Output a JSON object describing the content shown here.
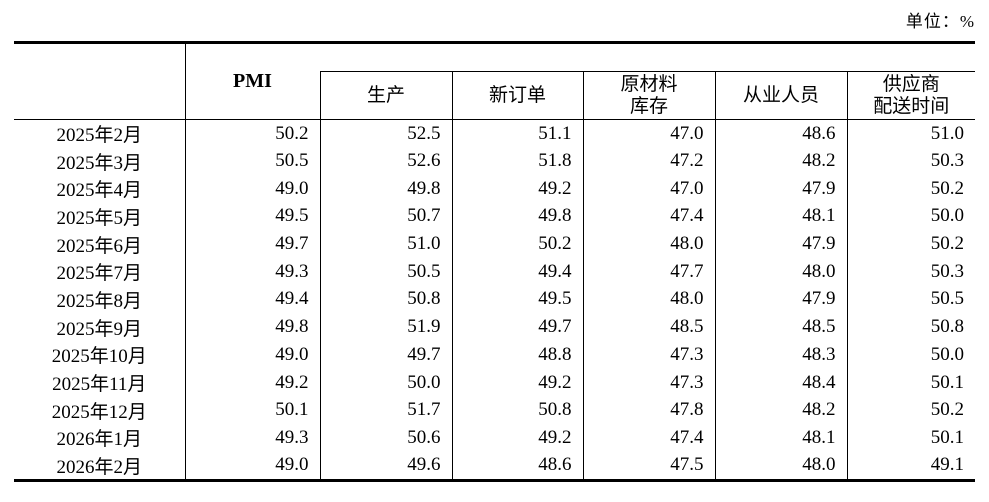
{
  "page": {
    "unit_label": "单位：%"
  },
  "table": {
    "columns": {
      "month": "",
      "pmi": "PMI",
      "production": "生产",
      "new_orders": "新订单",
      "raw_materials_inventory": "原材料\n库存",
      "employment": "从业人员",
      "supplier_delivery_time": "供应商\n配送时间"
    },
    "rows": [
      {
        "month": "2025年2月",
        "values": [
          "50.2",
          "52.5",
          "51.1",
          "47.0",
          "48.6",
          "51.0"
        ]
      },
      {
        "month": "2025年3月",
        "values": [
          "50.5",
          "52.6",
          "51.8",
          "47.2",
          "48.2",
          "50.3"
        ]
      },
      {
        "month": "2025年4月",
        "values": [
          "49.0",
          "49.8",
          "49.2",
          "47.0",
          "47.9",
          "50.2"
        ]
      },
      {
        "month": "2025年5月",
        "values": [
          "49.5",
          "50.7",
          "49.8",
          "47.4",
          "48.1",
          "50.0"
        ]
      },
      {
        "month": "2025年6月",
        "values": [
          "49.7",
          "51.0",
          "50.2",
          "48.0",
          "47.9",
          "50.2"
        ]
      },
      {
        "month": "2025年7月",
        "values": [
          "49.3",
          "50.5",
          "49.4",
          "47.7",
          "48.0",
          "50.3"
        ]
      },
      {
        "month": "2025年8月",
        "values": [
          "49.4",
          "50.8",
          "49.5",
          "48.0",
          "47.9",
          "50.5"
        ]
      },
      {
        "month": "2025年9月",
        "values": [
          "49.8",
          "51.9",
          "49.7",
          "48.5",
          "48.5",
          "50.8"
        ]
      },
      {
        "month": "2025年10月",
        "values": [
          "49.0",
          "49.7",
          "48.8",
          "47.3",
          "48.3",
          "50.0"
        ]
      },
      {
        "month": "2025年11月",
        "values": [
          "49.2",
          "50.0",
          "49.2",
          "47.3",
          "48.4",
          "50.1"
        ]
      },
      {
        "month": "2025年12月",
        "values": [
          "50.1",
          "51.7",
          "50.8",
          "47.8",
          "48.2",
          "50.2"
        ]
      },
      {
        "month": "2026年1月",
        "values": [
          "49.3",
          "50.6",
          "49.2",
          "47.4",
          "48.1",
          "50.1"
        ]
      },
      {
        "month": "2026年2月",
        "values": [
          "49.0",
          "49.6",
          "48.6",
          "47.5",
          "48.0",
          "49.1"
        ]
      }
    ]
  }
}
